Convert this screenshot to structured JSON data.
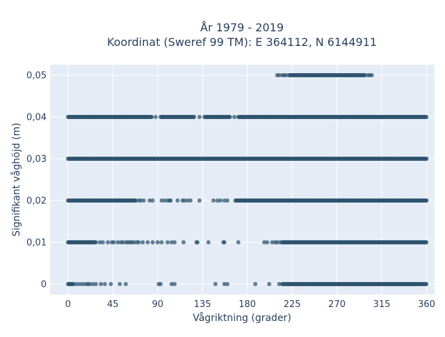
{
  "chart_data": {
    "type": "scatter",
    "title_line1": "År 1979 - 2019",
    "title_line2": "Koordinat (Sweref 99 TM): E 364112, N 6144911",
    "xlabel": "Vågriktning (grader)",
    "ylabel": "Signifikant våghöjd (m)",
    "xlim": [
      -18,
      368
    ],
    "ylim": [
      -0.0025,
      0.0525
    ],
    "x_ticks": [
      0,
      45,
      90,
      135,
      180,
      225,
      270,
      315,
      360
    ],
    "x_tick_labels": [
      "0",
      "45",
      "90",
      "135",
      "180",
      "225",
      "270",
      "315",
      "360"
    ],
    "y_ticks": [
      0,
      0.01,
      0.02,
      0.03,
      0.04,
      0.05
    ],
    "y_tick_labels": [
      "0",
      "0,01",
      "0,02",
      "0,03",
      "0,04",
      "0,05"
    ],
    "grid": true,
    "marker_color": "#2e536d",
    "plot_background": "#e5ecf6",
    "rows": [
      {
        "y": 0,
        "dense_ranges": [
          [
            0,
            5
          ],
          [
            215,
            360
          ]
        ],
        "points": [
          6,
          9,
          12,
          15,
          18,
          20,
          22,
          25,
          28,
          33,
          37,
          43,
          52,
          58,
          91,
          93,
          104,
          107,
          148,
          157,
          160,
          188,
          202,
          212
        ]
      },
      {
        "y": 0.01,
        "dense_ranges": [
          [
            0,
            28
          ],
          [
            215,
            360
          ]
        ],
        "points": [
          32,
          35,
          40,
          44,
          46,
          50,
          53,
          55,
          58,
          60,
          62,
          64,
          66,
          69,
          71,
          75,
          80,
          85,
          90,
          94,
          100,
          104,
          107,
          116,
          129,
          130,
          141,
          156,
          157,
          171,
          197,
          200,
          205,
          208,
          210,
          213
        ]
      },
      {
        "y": 0.02,
        "dense_ranges": [
          [
            0,
            68
          ],
          [
            168,
            360
          ]
        ],
        "points": [
          71,
          73,
          76,
          82,
          85,
          94,
          97,
          100,
          102,
          103,
          110,
          115,
          117,
          120,
          123,
          132,
          146,
          150,
          153,
          157,
          160
        ]
      },
      {
        "y": 0.03,
        "dense_ranges": [
          [
            0,
            360
          ]
        ],
        "points": []
      },
      {
        "y": 0.04,
        "dense_ranges": [
          [
            0,
            84
          ],
          [
            93,
            127
          ],
          [
            137,
            163
          ],
          [
            171,
            360
          ]
        ],
        "points": [
          88,
          132,
          167
        ]
      },
      {
        "y": 0.05,
        "dense_ranges": [
          [
            222,
            298
          ]
        ],
        "points": [
          210,
          212,
          215,
          217,
          219,
          301,
          303,
          305
        ]
      }
    ]
  }
}
